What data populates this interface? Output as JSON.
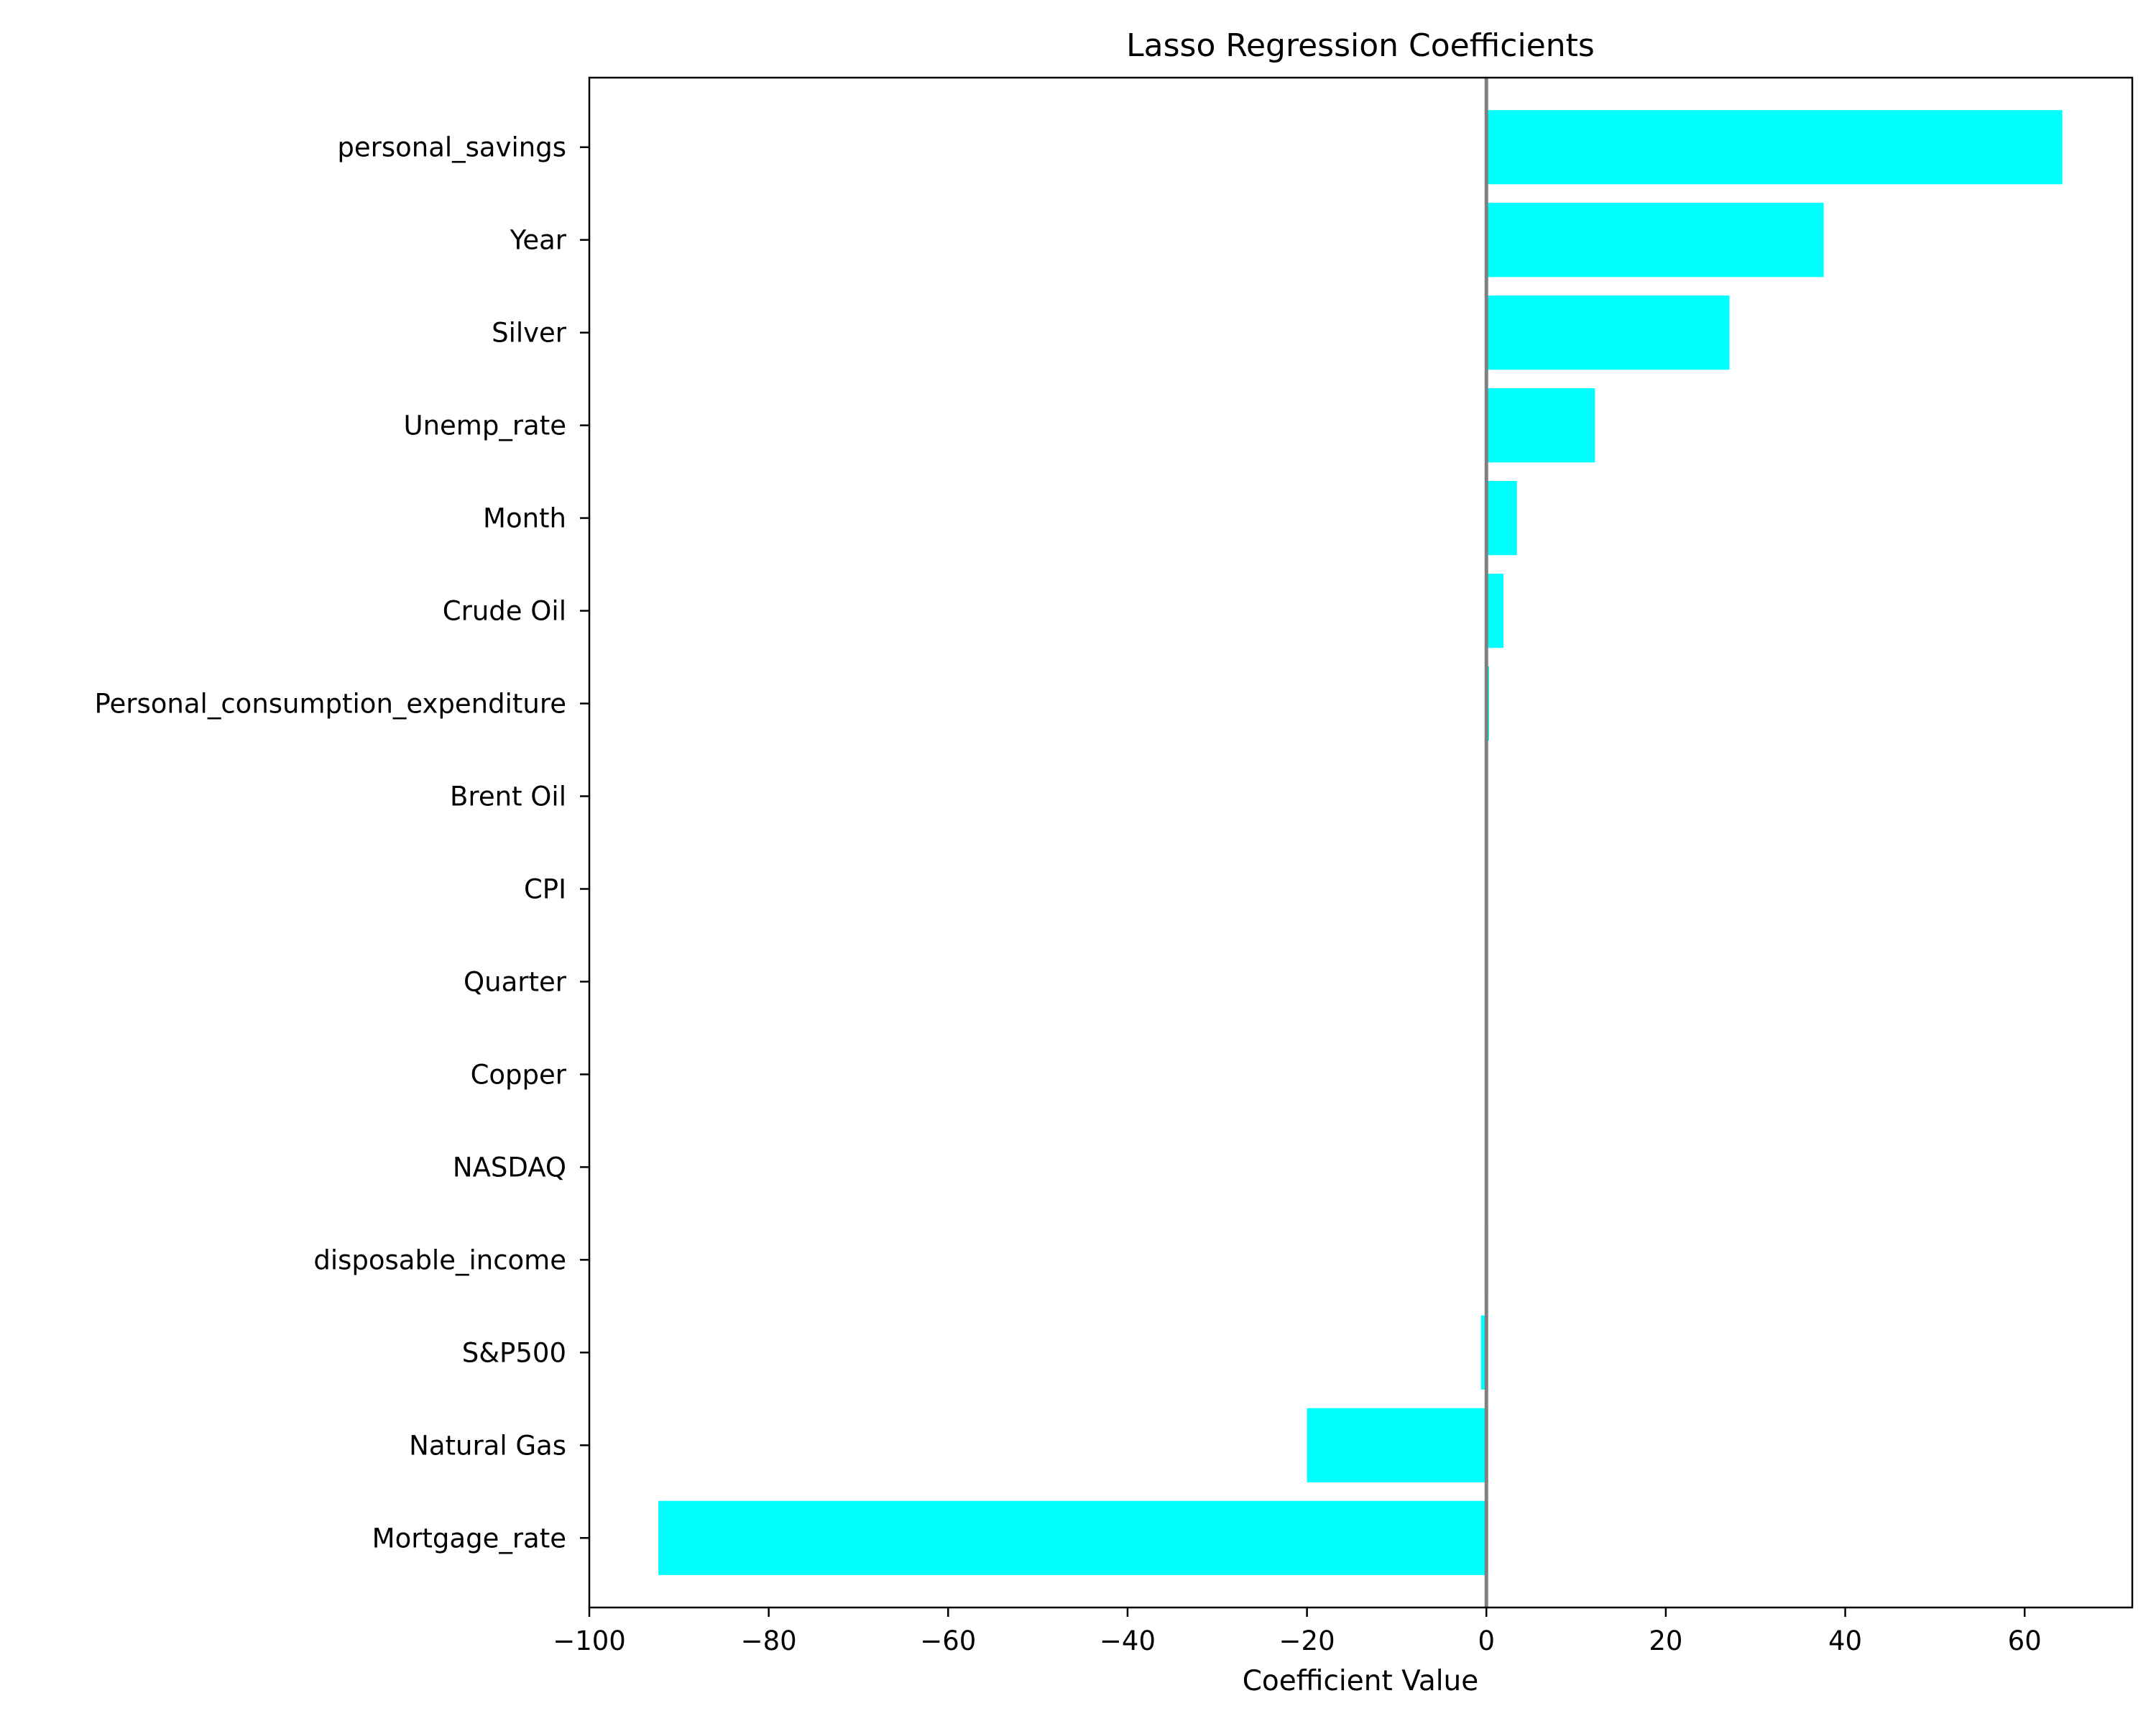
{
  "chart_data": {
    "type": "bar",
    "orientation": "horizontal",
    "title": "Lasso Regression Coefficients",
    "xlabel": "Coefficient Value",
    "ylabel": "",
    "xlim": [
      -100,
      72
    ],
    "xticks": [
      -100,
      -80,
      -60,
      -40,
      -20,
      0,
      20,
      40,
      60
    ],
    "xtick_labels": [
      "−100",
      "−80",
      "−60",
      "−40",
      "−20",
      "0",
      "20",
      "40",
      "60"
    ],
    "categories": [
      "personal_savings",
      "Year",
      "Silver",
      "Unemp_rate",
      "Month",
      "Crude Oil",
      "Personal_consumption_expenditure",
      "Brent Oil",
      "CPI",
      "Quarter",
      "Copper",
      "NASDAQ",
      "disposable_income",
      "S&P500",
      "Natural Gas",
      "Mortgage_rate"
    ],
    "values": [
      64.2,
      37.6,
      27.1,
      12.1,
      3.4,
      1.9,
      0.3,
      0,
      0,
      0,
      0,
      0,
      -0.2,
      -0.6,
      -20.0,
      -92.3
    ],
    "bar_color": "#00ffff",
    "zero_line_color": "#808080",
    "grid": false,
    "legend": "none"
  }
}
